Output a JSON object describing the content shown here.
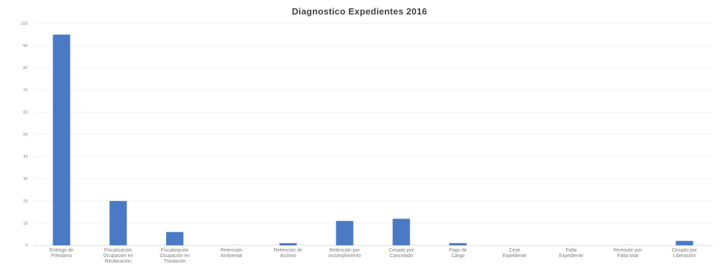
{
  "chart_data": {
    "type": "bar",
    "title": "Diagnostico Expedientes 2016",
    "xlabel": "",
    "ylabel": "",
    "categories": [
      [
        "Entrega de",
        "Préstamo"
      ],
      [
        "Fiscalización",
        "Ocupación en",
        "Reubicación"
      ],
      [
        "Fiscalización",
        "Ocupación en",
        "Traslación"
      ],
      [
        "Retención",
        "Ambiental"
      ],
      [
        "Retención de",
        "Archivo"
      ],
      [
        "Retención por",
        "Incumplimiento"
      ],
      [
        "Cesado por",
        "Cancelado"
      ],
      [
        "Pago de",
        "Cargo"
      ],
      [
        "Cese",
        "Expediente"
      ],
      [
        "Falta",
        "Expediente"
      ],
      [
        "Remisión por",
        "Falta total"
      ],
      [
        "Cesado por",
        "Liberación"
      ]
    ],
    "values": [
      95,
      20,
      6,
      0,
      1,
      11,
      12,
      1,
      0,
      0,
      0,
      2
    ],
    "ylim": [
      0,
      100
    ],
    "yticks": [
      0,
      10,
      20,
      30,
      40,
      50,
      60,
      70,
      80,
      90,
      100
    ],
    "grid": true,
    "legend": "none",
    "bar_color": "#4a7ac4"
  }
}
